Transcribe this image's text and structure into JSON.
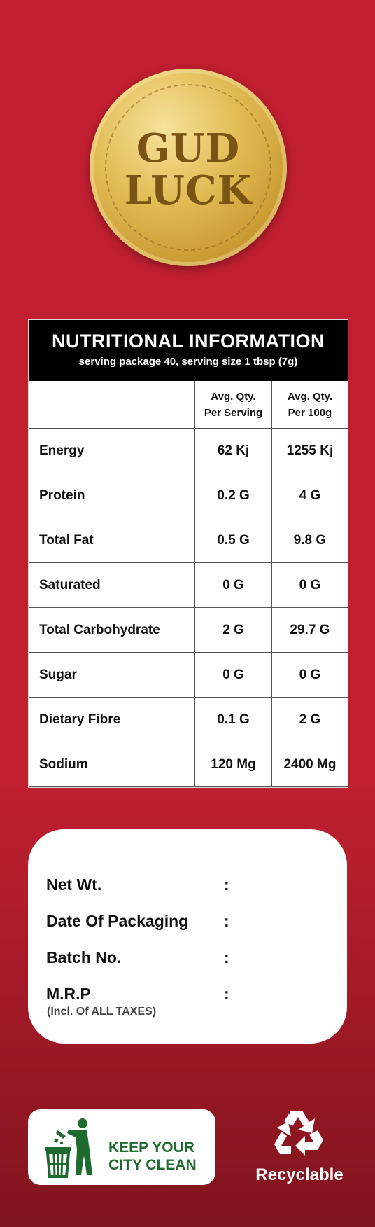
{
  "brand": {
    "line1": "GUD",
    "line2": "LUCK"
  },
  "nutrition": {
    "title": "NUTRITIONAL  INFORMATION",
    "subtitle": "serving package 40, serving size 1 tbsp (7g)",
    "col_serving": [
      "Avg. Qty.",
      "Per Serving"
    ],
    "col_100g": [
      "Avg. Qty.",
      "Per 100g"
    ],
    "rows": [
      {
        "name": "Energy",
        "serving": "62 Kj",
        "per100": "1255 Kj"
      },
      {
        "name": "Protein",
        "serving": "0.2 G",
        "per100": "4 G"
      },
      {
        "name": "Total Fat",
        "serving": "0.5 G",
        "per100": "9.8 G"
      },
      {
        "name": "Saturated",
        "serving": "0 G",
        "per100": "0 G"
      },
      {
        "name": "Total Carbohydrate",
        "serving": "2 G",
        "per100": "29.7 G"
      },
      {
        "name": "Sugar",
        "serving": "0 G",
        "per100": "0 G"
      },
      {
        "name": "Dietary Fibre",
        "serving": "0.1 G",
        "per100": "2 G"
      },
      {
        "name": "Sodium",
        "serving": "120 Mg",
        "per100": "2400 Mg"
      }
    ]
  },
  "info": {
    "net_wt": "Net Wt.",
    "date_packaging": "Date Of Packaging",
    "batch_no": "Batch No.",
    "mrp": "M.R.P",
    "mrp_note": "(Incl. Of ALL TAXES)",
    "colon": ":"
  },
  "footer": {
    "clean_line1": "KEEP YOUR",
    "clean_line2": "CITY CLEAN",
    "recyclable": "Recyclable"
  },
  "colors": {
    "background": "#bf1f30",
    "seal": "#d4a940",
    "clean_green": "#1f6a2f"
  }
}
